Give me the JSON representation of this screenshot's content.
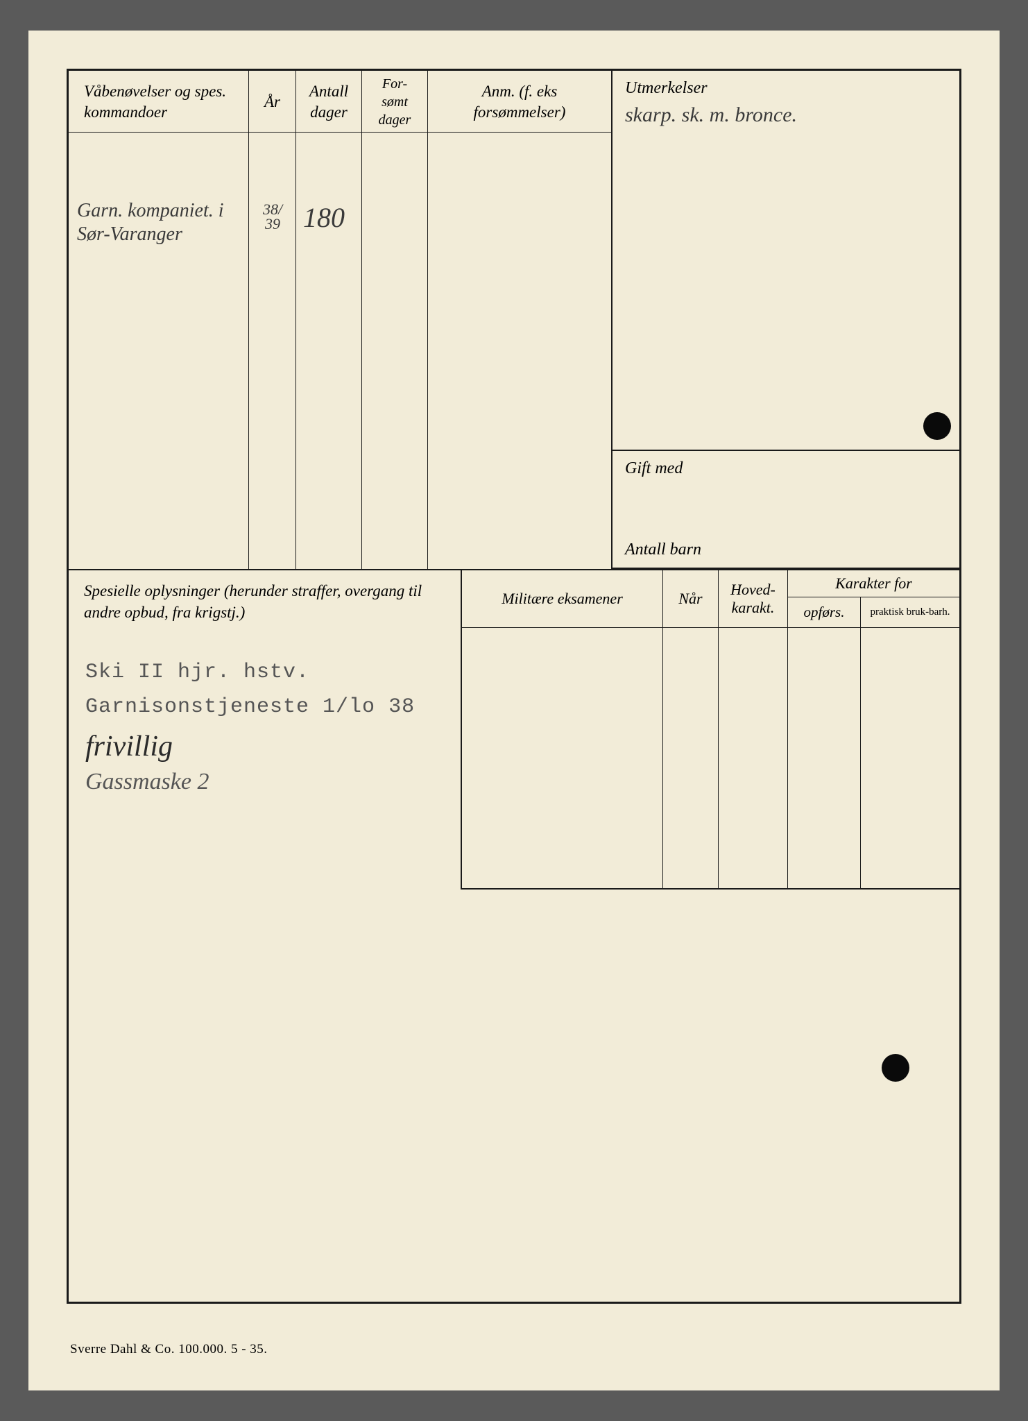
{
  "headers": {
    "vabenovelser": "Våbenøvelser og spes. kommandoer",
    "ar": "År",
    "antall_dager": "Antall dager",
    "forsomt_dager": "For-sømt dager",
    "anm": "Anm. (f. eks forsømmelser)",
    "utmerkelser": "Utmerkelser",
    "gift_med": "Gift med",
    "antall_barn": "Antall barn",
    "spesielle": "Spesielle oplysninger (herunder straffer, overgang til andre opbud, fra krigstj.)",
    "militaere_eksamener": "Militære eksamener",
    "nar": "Når",
    "hoved_karakt": "Hoved-karakt.",
    "karakter_for": "Karakter for",
    "opfors": "opførs.",
    "praktisk": "praktisk bruk-barh."
  },
  "entries": {
    "command": "Garn. kompaniet. i Sør-Varanger",
    "year_top": "38/",
    "year_bot": "39",
    "days": "180",
    "utmerkelser_hw": "skarp. sk. m. bronce.",
    "ski_line": "Ski II hjr. hstv.",
    "garnison_line": "Garnisonstjeneste 1/lo 38",
    "frivillig": "frivillig",
    "gassmaske": "Gassmaske 2"
  },
  "footer": "Sverre Dahl & Co.  100.000.  5 - 35.",
  "colors": {
    "paper": "#f2ecd8",
    "ink": "#1a1a1a",
    "handwriting": "#3a3a3a",
    "typewriter": "#555555",
    "background": "#5a5a5a"
  }
}
